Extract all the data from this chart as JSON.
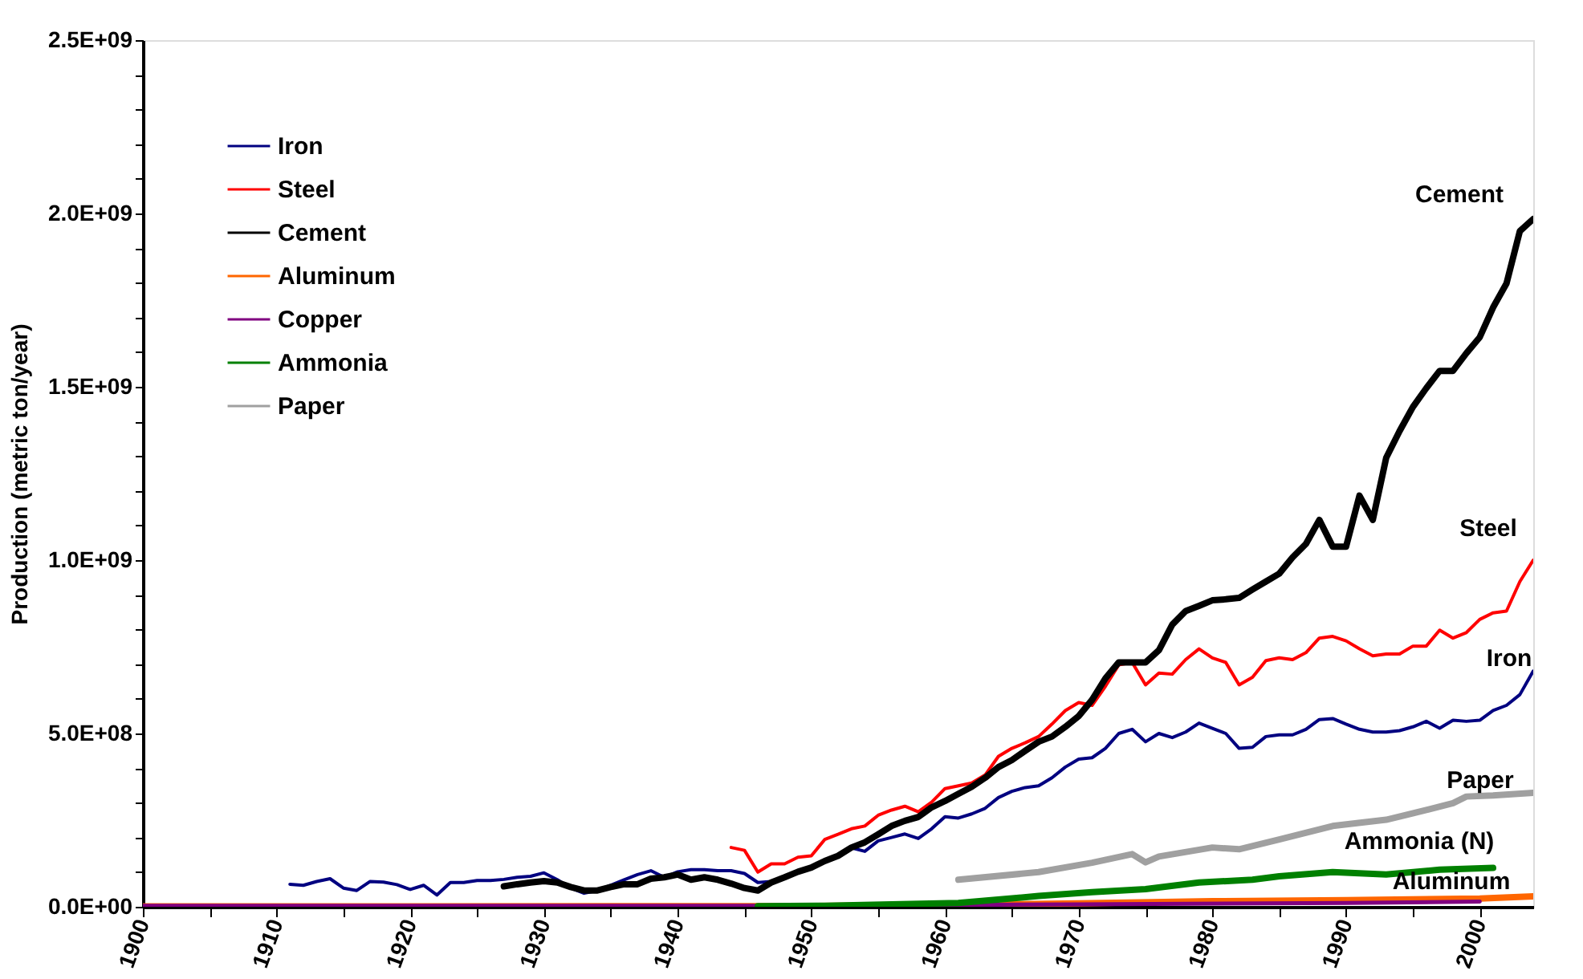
{
  "chart_data": {
    "type": "line",
    "ylabel": "Production (metric ton/year)",
    "xlim": [
      1900,
      2004
    ],
    "ylim": [
      0,
      2500000000.0
    ],
    "xticks": [
      1900,
      {
        "value": 1905,
        "label": null
      },
      1910,
      {
        "value": 1915,
        "label": null
      },
      1920,
      {
        "value": 1925,
        "label": null
      },
      1930,
      {
        "value": 1935,
        "label": null
      },
      1940,
      {
        "value": 1945,
        "label": null
      },
      1950,
      {
        "value": 1955,
        "label": null
      },
      1960,
      {
        "value": 1965,
        "label": null
      },
      1970,
      {
        "value": 1975,
        "label": null
      },
      1980,
      {
        "value": 1985,
        "label": null
      },
      1990,
      {
        "value": 1995,
        "label": null
      },
      2000
    ],
    "yticks": [
      {
        "value": 0,
        "label": "0.0E+00"
      },
      {
        "value": 100000000.0,
        "label": null
      },
      {
        "value": 200000000.0,
        "label": null
      },
      {
        "value": 300000000.0,
        "label": null
      },
      {
        "value": 400000000.0,
        "label": null
      },
      {
        "value": 500000000.0,
        "label": "5.0E+08"
      },
      {
        "value": 600000000.0,
        "label": null
      },
      {
        "value": 700000000.0,
        "label": null
      },
      {
        "value": 800000000.0,
        "label": null
      },
      {
        "value": 900000000.0,
        "label": null
      },
      {
        "value": 1000000000.0,
        "label": "1.0E+09"
      },
      {
        "value": 1100000000.0,
        "label": null
      },
      {
        "value": 1200000000.0,
        "label": null
      },
      {
        "value": 1300000000.0,
        "label": null
      },
      {
        "value": 1400000000.0,
        "label": null
      },
      {
        "value": 1500000000.0,
        "label": "1.5E+09"
      },
      {
        "value": 1600000000.0,
        "label": null
      },
      {
        "value": 1700000000.0,
        "label": null
      },
      {
        "value": 1800000000.0,
        "label": null
      },
      {
        "value": 1900000000.0,
        "label": null
      },
      {
        "value": 2000000000.0,
        "label": "2.0E+09"
      },
      {
        "value": 2100000000.0,
        "label": null
      },
      {
        "value": 2200000000.0,
        "label": null
      },
      {
        "value": 2300000000.0,
        "label": null
      },
      {
        "value": 2400000000.0,
        "label": null
      },
      {
        "value": 2500000000.0,
        "label": "2.5E+09"
      }
    ],
    "grid": false,
    "legend": "top left",
    "marker": "none",
    "line_style": "solid",
    "series": [
      {
        "name": "Iron",
        "color": "#000080",
        "x": [
          1911,
          1912,
          1913,
          1914,
          1915,
          1916,
          1917,
          1918,
          1919,
          1920,
          1921,
          1922,
          1923,
          1924,
          1925,
          1926,
          1927,
          1928,
          1929,
          1930,
          1931,
          1932,
          1933,
          1934,
          1935,
          1936,
          1937,
          1938,
          1939,
          1940,
          1941,
          1942,
          1943,
          1944,
          1945,
          1946,
          1947,
          1948,
          1949,
          1950,
          1951,
          1952,
          1953,
          1954,
          1955,
          1956,
          1957,
          1958,
          1959,
          1960,
          1961,
          1962,
          1963,
          1964,
          1965,
          1966,
          1967,
          1968,
          1969,
          1970,
          1971,
          1972,
          1973,
          1974,
          1975,
          1976,
          1977,
          1978,
          1979,
          1980,
          1981,
          1982,
          1983,
          1984,
          1985,
          1986,
          1987,
          1988,
          1989,
          1990,
          1991,
          1992,
          1993,
          1994,
          1995,
          1996,
          1997,
          1998,
          1999,
          2000,
          2001,
          2002,
          2003,
          2004
        ],
        "values": [
          65000000.0,
          62000000.0,
          73000000.0,
          81000000.0,
          54000000.0,
          47000000.0,
          73000000.0,
          71000000.0,
          64000000.0,
          50000000.0,
          62000000.0,
          34000000.0,
          70000000.0,
          70000000.0,
          76000000.0,
          76000000.0,
          79000000.0,
          85000000.0,
          88000000.0,
          98000000.0,
          78000000.0,
          54000000.0,
          39000000.0,
          47000000.0,
          62000000.0,
          78000000.0,
          93000000.0,
          104000000.0,
          85000000.0,
          101000000.0,
          107000000.0,
          107000000.0,
          104000000.0,
          104000000.0,
          96000000.0,
          70000000.0,
          73000000.0,
          85000000.0,
          104000000.0,
          113000000.0,
          135000000.0,
          150000000.0,
          170000000.0,
          160000000.0,
          190000000.0,
          200000000.0,
          210000000.0,
          197000000.0,
          225000000.0,
          260000000.0,
          256000000.0,
          268000000.0,
          284000000.0,
          315000000.0,
          333000000.0,
          344000000.0,
          349000000.0,
          372000000.0,
          403000000.0,
          426000000.0,
          430000000.0,
          457000000.0,
          500000000.0,
          512000000.0,
          476000000.0,
          500000000.0,
          488000000.0,
          504000000.0,
          530000000.0,
          515000000.0,
          500000000.0,
          457000000.0,
          460000000.0,
          491000000.0,
          496000000.0,
          496000000.0,
          512000000.0,
          540000000.0,
          543000000.0,
          527000000.0,
          512000000.0,
          504000000.0,
          504000000.0,
          508000000.0,
          519000000.0,
          535000000.0,
          515000000.0,
          538000000.0,
          535000000.0,
          538000000.0,
          566000000.0,
          581000000.0,
          612000000.0,
          680000000.0
        ]
      },
      {
        "name": "Steel",
        "color": "#ff0000",
        "x": [
          1944,
          1945,
          1946,
          1947,
          1948,
          1949,
          1950,
          1951,
          1952,
          1953,
          1954,
          1955,
          1956,
          1957,
          1958,
          1959,
          1960,
          1961,
          1962,
          1963,
          1964,
          1965,
          1966,
          1967,
          1968,
          1969,
          1970,
          1971,
          1972,
          1973,
          1974,
          1975,
          1976,
          1977,
          1978,
          1979,
          1980,
          1981,
          1982,
          1983,
          1984,
          1985,
          1986,
          1987,
          1988,
          1989,
          1990,
          1991,
          1992,
          1993,
          1994,
          1995,
          1996,
          1997,
          1998,
          1999,
          2000,
          2001,
          2002,
          2003,
          2004
        ],
        "values": [
          171000000.0,
          163000000.0,
          100000000.0,
          124000000.0,
          124000000.0,
          143000000.0,
          147000000.0,
          194000000.0,
          209000000.0,
          225000000.0,
          233000000.0,
          264000000.0,
          279000000.0,
          290000000.0,
          274000000.0,
          302000000.0,
          341000000.0,
          349000000.0,
          357000000.0,
          380000000.0,
          434000000.0,
          457000000.0,
          473000000.0,
          491000000.0,
          527000000.0,
          566000000.0,
          589000000.0,
          581000000.0,
          636000000.0,
          698000000.0,
          705000000.0,
          640000000.0,
          674000000.0,
          671000000.0,
          713000000.0,
          744000000.0,
          718000000.0,
          705000000.0,
          640000000.0,
          662000000.0,
          710000000.0,
          718000000.0,
          713000000.0,
          733000000.0,
          775000000.0,
          780000000.0,
          767000000.0,
          744000000.0,
          724000000.0,
          729000000.0,
          729000000.0,
          752000000.0,
          752000000.0,
          798000000.0,
          775000000.0,
          791000000.0,
          829000000.0,
          848000000.0,
          853000000.0,
          938000000.0,
          1000000000.0
        ]
      },
      {
        "name": "Cement",
        "color": "#000000",
        "x": [
          1927,
          1928,
          1929,
          1930,
          1931,
          1932,
          1933,
          1934,
          1935,
          1936,
          1937,
          1938,
          1939,
          1940,
          1941,
          1942,
          1943,
          1944,
          1945,
          1946,
          1947,
          1948,
          1949,
          1950,
          1951,
          1952,
          1953,
          1954,
          1955,
          1956,
          1957,
          1958,
          1959,
          1960,
          1961,
          1962,
          1963,
          1964,
          1965,
          1966,
          1967,
          1968,
          1969,
          1970,
          1971,
          1972,
          1973,
          1974,
          1975,
          1976,
          1977,
          1978,
          1979,
          1980,
          1981,
          1982,
          1983,
          1984,
          1985,
          1986,
          1987,
          1988,
          1989,
          1990,
          1991,
          1992,
          1993,
          1994,
          1995,
          1996,
          1997,
          1998,
          1999,
          2000,
          2001,
          2002,
          2003,
          2004
        ],
        "values": [
          59000000.0,
          65000000.0,
          70000000.0,
          74000000.0,
          70000000.0,
          57000000.0,
          47000000.0,
          47000000.0,
          57000000.0,
          65000000.0,
          65000000.0,
          81000000.0,
          85000000.0,
          93000000.0,
          78000000.0,
          85000000.0,
          78000000.0,
          67000000.0,
          54000000.0,
          47000000.0,
          70000000.0,
          85000000.0,
          101000000.0,
          113000000.0,
          132000000.0,
          147000000.0,
          171000000.0,
          186000000.0,
          209000000.0,
          233000000.0,
          248000000.0,
          259000000.0,
          287000000.0,
          305000000.0,
          326000000.0,
          346000000.0,
          372000000.0,
          403000000.0,
          423000000.0,
          450000000.0,
          476000000.0,
          491000000.0,
          519000000.0,
          550000000.0,
          597000000.0,
          659000000.0,
          705000000.0,
          705000000.0,
          705000000.0,
          740000000.0,
          814000000.0,
          853000000.0,
          868000000.0,
          884000000.0,
          887000000.0,
          891000000.0,
          915000000.0,
          938000000.0,
          961000000.0,
          1008000000.0,
          1047000000.0,
          1116000000.0,
          1039000000.0,
          1039000000.0,
          1186000000.0,
          1116000000.0,
          1295000000.0,
          1372000000.0,
          1442000000.0,
          1496000000.0,
          1546000000.0,
          1546000000.0,
          1597000000.0,
          1643000000.0,
          1729000000.0,
          1798000000.0,
          1949000000.0,
          1984000000.0
        ]
      },
      {
        "name": "Aluminum",
        "color": "#ff6600",
        "x": [
          1900,
          1950,
          1960,
          1970,
          1980,
          1990,
          2000,
          2004
        ],
        "values": [
          1000000.0,
          2000000.0,
          5000000.0,
          10000000.0,
          16000000.0,
          19000000.0,
          24000000.0,
          30000000.0
        ]
      },
      {
        "name": "Copper",
        "color": "#800080",
        "x": [
          1900,
          1950,
          1970,
          1990,
          2000
        ],
        "values": [
          3000000.0,
          3000000.0,
          7000000.0,
          11000000.0,
          15000000.0
        ]
      },
      {
        "name": "Ammonia",
        "color": "#008000",
        "x": [
          1946,
          1951,
          1961,
          1967,
          1971,
          1975,
          1979,
          1983,
          1985,
          1989,
          1993,
          1997,
          2001
        ],
        "values": [
          2000000.0,
          3000000.0,
          11000000.0,
          31000000.0,
          42000000.0,
          51000000.0,
          70000000.0,
          78000000.0,
          88000000.0,
          100000000.0,
          93000000.0,
          107000000.0,
          112000000.0
        ]
      },
      {
        "name": "Paper",
        "color": "#a0a0a0",
        "x": [
          1961,
          1967,
          1971,
          1974,
          1975,
          1976,
          1980,
          1982,
          1985,
          1989,
          1993,
          1996,
          1998,
          1999,
          2001,
          2004
        ],
        "values": [
          78000000.0,
          100000000.0,
          127000000.0,
          152000000.0,
          128000000.0,
          145000000.0,
          171000000.0,
          166000000.0,
          194000000.0,
          233000000.0,
          251000000.0,
          279000000.0,
          299000000.0,
          318000000.0,
          321000000.0,
          329000000.0
        ]
      }
    ],
    "annotations": [
      "Cement",
      "Steel",
      "Iron",
      "Paper",
      "Ammonia (N)",
      "Aluminum"
    ]
  }
}
